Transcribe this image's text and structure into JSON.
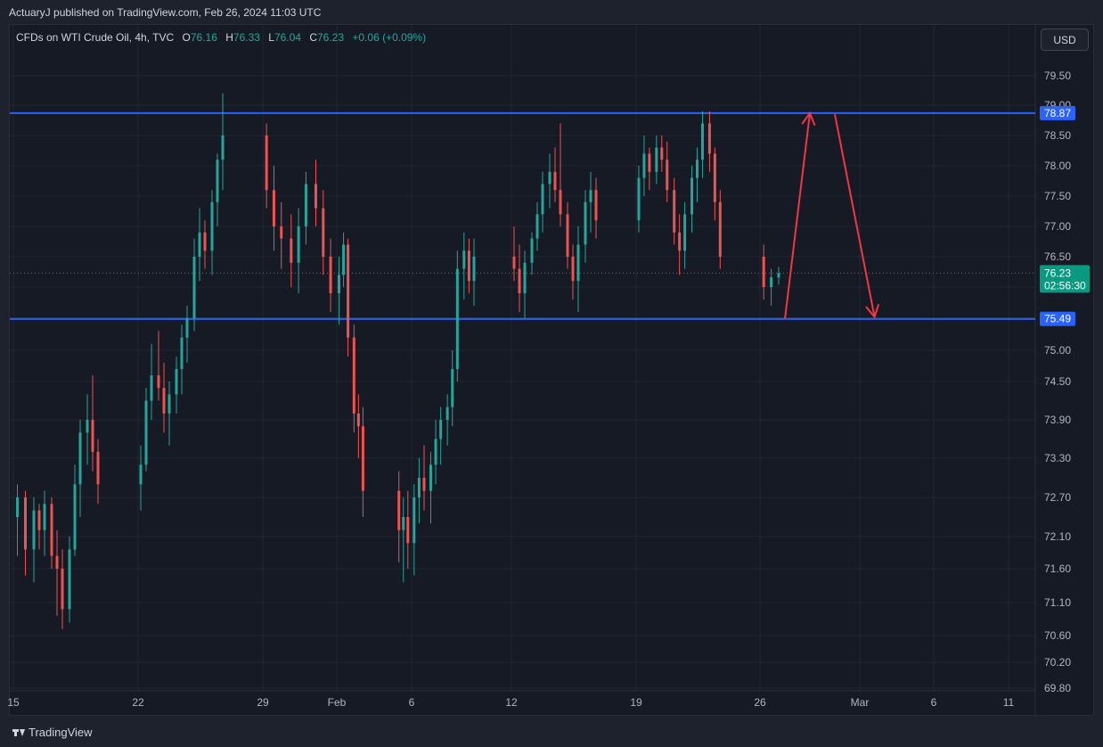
{
  "header": {
    "publisher_line": "ActuaryJ published on TradingView.com, Feb 26, 2024 11:03 UTC"
  },
  "legend": {
    "symbol": "CFDs on WTI Crude Oil, 4h, TVC",
    "o_label": "O",
    "o_value": "76.16",
    "h_label": "H",
    "h_value": "76.33",
    "l_label": "L",
    "l_value": "76.04",
    "c_label": "C",
    "c_value": "76.23",
    "change": "+0.06 (+0.09%)"
  },
  "currency_button": "USD",
  "footer": {
    "logo_text": "TradingView"
  },
  "colors": {
    "up": "#26a69a",
    "down": "#ef5350",
    "level": "#2962ff",
    "arrow": "#f23645",
    "price_badge": "#089981",
    "background": "#161a25"
  },
  "chart_data": {
    "type": "candlestick",
    "interval": "4h",
    "y_axis_ticks": [
      79.5,
      79.0,
      78.5,
      78.0,
      77.5,
      77.0,
      76.5,
      76.0,
      75.5,
      75.0,
      74.5,
      73.9,
      73.3,
      72.7,
      72.1,
      71.6,
      71.1,
      70.6,
      70.2,
      69.8
    ],
    "y_tick_labels": [
      "79.50",
      "79.00",
      "78.50",
      "78.00",
      "77.50",
      "77.00",
      "76.50",
      "76.00",
      "75.50",
      "75.00",
      "74.50",
      "73.90",
      "73.30",
      "72.70",
      "72.10",
      "71.60",
      "71.10",
      "70.60",
      "70.20",
      "69.80"
    ],
    "x_axis_labels": [
      {
        "label": "15",
        "date": "2024-01-15"
      },
      {
        "label": "22",
        "date": "2024-01-22"
      },
      {
        "label": "29",
        "date": "2024-01-29"
      },
      {
        "label": "Feb",
        "date": "2024-02-01"
      },
      {
        "label": "6",
        "date": "2024-02-06"
      },
      {
        "label": "12",
        "date": "2024-02-12"
      },
      {
        "label": "19",
        "date": "2024-02-19"
      },
      {
        "label": "26",
        "date": "2024-02-26"
      },
      {
        "label": "Mar",
        "date": "2024-03-01"
      },
      {
        "label": "6",
        "date": "2024-03-06"
      },
      {
        "label": "11",
        "date": "2024-03-11"
      }
    ],
    "horizontal_levels": [
      {
        "price": 78.87,
        "label": "78.87"
      },
      {
        "price": 75.49,
        "label": "75.49"
      }
    ],
    "last_price": {
      "value": 76.23,
      "label": "76.23",
      "countdown": "02:56:30"
    },
    "projection_arrows": [
      {
        "from": {
          "date": "2024-02-27",
          "price": 75.49
        },
        "to": {
          "date": "2024-02-28",
          "price": 78.87
        }
      },
      {
        "from": {
          "date": "2024-02-29",
          "price": 78.85
        },
        "to": {
          "date": "2024-03-02",
          "price": 75.52
        }
      }
    ],
    "series": [
      {
        "name": "CFDs on WTI Crude Oil",
        "points": [
          [
            "2024-01-15",
            72.4,
            72.9,
            71.8,
            72.7
          ],
          [
            "2024-01-15",
            72.7,
            72.8,
            71.5,
            71.9
          ],
          [
            "2024-01-16",
            71.9,
            72.7,
            71.4,
            72.5
          ],
          [
            "2024-01-16",
            72.5,
            72.6,
            71.9,
            72.2
          ],
          [
            "2024-01-16",
            72.2,
            72.8,
            71.8,
            72.6
          ],
          [
            "2024-01-17",
            72.6,
            72.7,
            71.6,
            71.8
          ],
          [
            "2024-01-17",
            71.8,
            72.2,
            70.9,
            71.6
          ],
          [
            "2024-01-17",
            71.6,
            71.9,
            70.7,
            71.0
          ],
          [
            "2024-01-18",
            71.0,
            72.1,
            70.8,
            71.9
          ],
          [
            "2024-01-18",
            71.9,
            73.2,
            71.8,
            72.9
          ],
          [
            "2024-01-18",
            72.9,
            73.9,
            72.4,
            73.7
          ],
          [
            "2024-01-19",
            73.7,
            74.3,
            73.2,
            73.9
          ],
          [
            "2024-01-19",
            73.9,
            74.6,
            73.1,
            73.4
          ],
          [
            "2024-01-19",
            73.4,
            73.6,
            72.6,
            72.9
          ],
          [
            "2024-01-22",
            72.9,
            73.5,
            72.5,
            73.2
          ],
          [
            "2024-01-22",
            73.2,
            74.4,
            73.1,
            74.2
          ],
          [
            "2024-01-22",
            74.2,
            75.1,
            73.9,
            74.6
          ],
          [
            "2024-01-23",
            74.6,
            75.3,
            74.2,
            74.4
          ],
          [
            "2024-01-23",
            74.4,
            74.8,
            73.7,
            74.0
          ],
          [
            "2024-01-23",
            74.0,
            74.5,
            73.5,
            74.3
          ],
          [
            "2024-01-24",
            74.3,
            74.9,
            74.0,
            74.7
          ],
          [
            "2024-01-24",
            74.7,
            75.4,
            74.3,
            75.2
          ],
          [
            "2024-01-24",
            75.2,
            75.7,
            74.8,
            75.5
          ],
          [
            "2024-01-25",
            75.5,
            76.8,
            75.3,
            76.5
          ],
          [
            "2024-01-25",
            76.5,
            77.3,
            76.1,
            76.9
          ],
          [
            "2024-01-25",
            76.9,
            77.1,
            76.3,
            76.6
          ],
          [
            "2024-01-26",
            76.6,
            77.6,
            76.2,
            77.4
          ],
          [
            "2024-01-26",
            77.4,
            78.2,
            77.0,
            78.1
          ],
          [
            "2024-01-26",
            78.1,
            79.2,
            77.6,
            78.5
          ],
          [
            "2024-01-29",
            78.5,
            78.7,
            77.3,
            77.6
          ],
          [
            "2024-01-29",
            77.6,
            78.0,
            76.6,
            77.0
          ],
          [
            "2024-01-29",
            77.0,
            77.4,
            76.3,
            76.8
          ],
          [
            "2024-01-30",
            76.8,
            77.2,
            76.0,
            76.4
          ],
          [
            "2024-01-30",
            76.4,
            77.3,
            75.9,
            77.0
          ],
          [
            "2024-01-30",
            77.0,
            77.9,
            76.7,
            77.7
          ],
          [
            "2024-01-31",
            77.7,
            78.1,
            77.0,
            77.3
          ],
          [
            "2024-01-31",
            77.3,
            77.6,
            76.2,
            76.5
          ],
          [
            "2024-01-31",
            76.5,
            76.8,
            75.6,
            75.9
          ],
          [
            "2024-02-01",
            75.9,
            76.5,
            75.4,
            76.2
          ],
          [
            "2024-02-01",
            76.2,
            76.9,
            76.0,
            76.7
          ],
          [
            "2024-02-01",
            76.7,
            76.8,
            74.9,
            75.2
          ],
          [
            "2024-02-02",
            75.2,
            75.4,
            73.7,
            74.0
          ],
          [
            "2024-02-02",
            74.0,
            74.3,
            73.3,
            73.8
          ],
          [
            "2024-02-02",
            73.8,
            74.1,
            72.4,
            72.8
          ],
          [
            "2024-02-05",
            72.8,
            73.1,
            71.7,
            72.2
          ],
          [
            "2024-02-05",
            72.2,
            72.7,
            71.4,
            72.4
          ],
          [
            "2024-02-05",
            72.4,
            72.8,
            71.6,
            72.0
          ],
          [
            "2024-02-06",
            72.0,
            72.9,
            71.5,
            72.7
          ],
          [
            "2024-02-06",
            72.7,
            73.3,
            72.3,
            73.0
          ],
          [
            "2024-02-06",
            73.0,
            73.5,
            72.5,
            72.8
          ],
          [
            "2024-02-07",
            72.8,
            73.4,
            72.3,
            73.2
          ],
          [
            "2024-02-07",
            73.2,
            73.9,
            72.9,
            73.6
          ],
          [
            "2024-02-07",
            73.6,
            74.1,
            73.2,
            73.9
          ],
          [
            "2024-02-08",
            73.9,
            74.3,
            73.5,
            74.1
          ],
          [
            "2024-02-08",
            74.1,
            75.0,
            73.8,
            74.7
          ],
          [
            "2024-02-08",
            74.7,
            76.6,
            74.5,
            76.3
          ],
          [
            "2024-02-09",
            76.3,
            76.9,
            75.8,
            76.6
          ],
          [
            "2024-02-09",
            76.6,
            76.8,
            75.9,
            76.1
          ],
          [
            "2024-02-09",
            76.1,
            76.8,
            75.7,
            76.5
          ],
          [
            "2024-02-12",
            76.5,
            77.0,
            76.1,
            76.3
          ],
          [
            "2024-02-12",
            76.3,
            76.7,
            75.6,
            75.9
          ],
          [
            "2024-02-12",
            75.9,
            76.6,
            75.5,
            76.4
          ],
          [
            "2024-02-13",
            76.4,
            76.9,
            76.2,
            76.8
          ],
          [
            "2024-02-13",
            76.8,
            77.4,
            76.6,
            77.2
          ],
          [
            "2024-02-13",
            77.2,
            77.9,
            76.9,
            77.7
          ],
          [
            "2024-02-14",
            77.7,
            78.2,
            77.3,
            77.9
          ],
          [
            "2024-02-14",
            77.9,
            78.3,
            77.4,
            77.6
          ],
          [
            "2024-02-14",
            77.6,
            78.7,
            77.0,
            77.2
          ],
          [
            "2024-02-15",
            77.2,
            77.4,
            76.3,
            76.5
          ],
          [
            "2024-02-15",
            76.5,
            76.7,
            75.8,
            76.1
          ],
          [
            "2024-02-15",
            76.1,
            77.0,
            75.6,
            76.7
          ],
          [
            "2024-02-16",
            76.7,
            77.6,
            76.4,
            77.4
          ],
          [
            "2024-02-16",
            77.4,
            77.9,
            76.9,
            77.6
          ],
          [
            "2024-02-16",
            77.6,
            77.8,
            76.8,
            77.1
          ],
          [
            "2024-02-19",
            77.1,
            78.0,
            76.9,
            77.8
          ],
          [
            "2024-02-19",
            77.8,
            78.5,
            77.5,
            78.2
          ],
          [
            "2024-02-19",
            78.2,
            78.3,
            77.6,
            77.9
          ],
          [
            "2024-02-20",
            77.9,
            78.5,
            77.7,
            78.3
          ],
          [
            "2024-02-20",
            78.3,
            78.5,
            77.9,
            78.1
          ],
          [
            "2024-02-20",
            78.1,
            78.4,
            77.4,
            77.6
          ],
          [
            "2024-02-21",
            77.6,
            77.8,
            76.7,
            76.9
          ],
          [
            "2024-02-21",
            76.9,
            77.2,
            76.2,
            76.6
          ],
          [
            "2024-02-21",
            76.6,
            77.4,
            76.3,
            77.2
          ],
          [
            "2024-02-22",
            77.2,
            78.0,
            76.9,
            77.8
          ],
          [
            "2024-02-22",
            77.8,
            78.3,
            77.4,
            78.1
          ],
          [
            "2024-02-22",
            78.1,
            78.9,
            77.8,
            78.7
          ],
          [
            "2024-02-23",
            78.7,
            78.9,
            77.9,
            78.2
          ],
          [
            "2024-02-23",
            78.2,
            78.3,
            77.1,
            77.4
          ],
          [
            "2024-02-23",
            77.4,
            77.6,
            76.3,
            76.5
          ],
          [
            "2024-02-26",
            76.5,
            76.7,
            75.8,
            76.0
          ],
          [
            "2024-02-26",
            76.0,
            76.3,
            75.7,
            76.16
          ],
          [
            "2024-02-26",
            76.16,
            76.33,
            76.04,
            76.23
          ]
        ]
      }
    ]
  }
}
